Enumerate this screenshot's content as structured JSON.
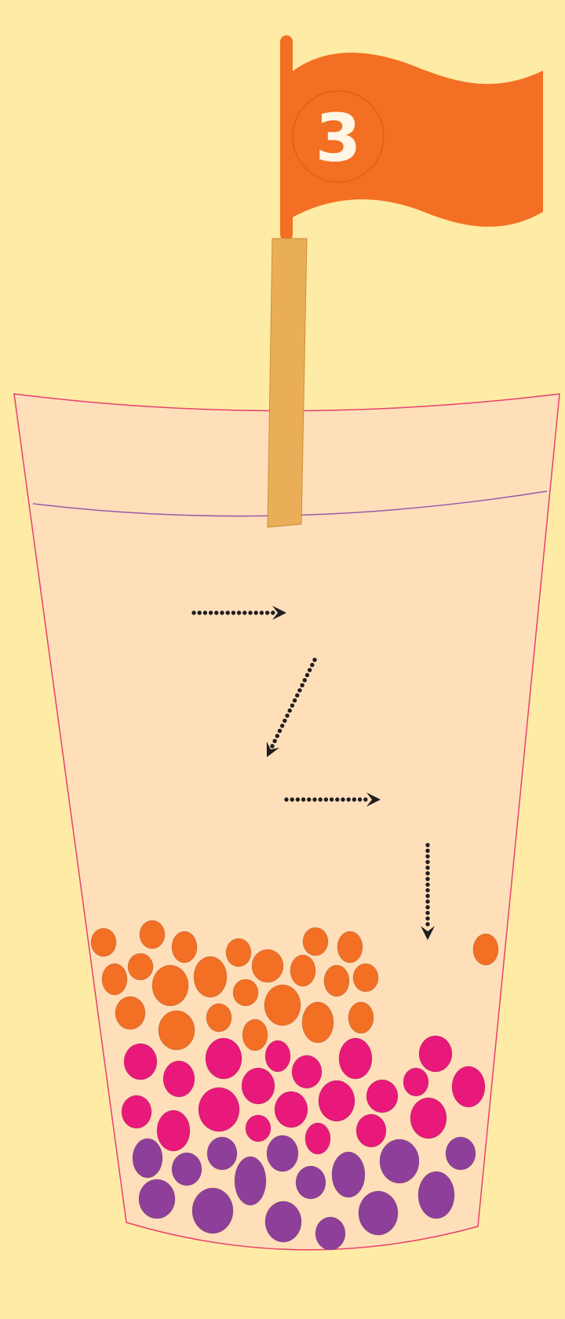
{
  "flag": {
    "number": "3",
    "color": "#F36F24",
    "number_color": "#FFF6E6"
  },
  "colors": {
    "background": "#FEEBA5",
    "cup_fill": "#FFDFBA",
    "cup_outline": "#E8416C",
    "liquid_line": "#9A5AA8",
    "straw": "#EBAE58",
    "arrow": "#1F1F1F",
    "boba_orange": "#F36F24",
    "boba_pink": "#E8197A",
    "boba_purple": "#8E3F99"
  },
  "arrows": [
    {
      "name": "arrow-right-1",
      "direction": "right"
    },
    {
      "name": "arrow-down-left",
      "direction": "down-left"
    },
    {
      "name": "arrow-right-2",
      "direction": "right"
    },
    {
      "name": "arrow-down",
      "direction": "down"
    }
  ]
}
